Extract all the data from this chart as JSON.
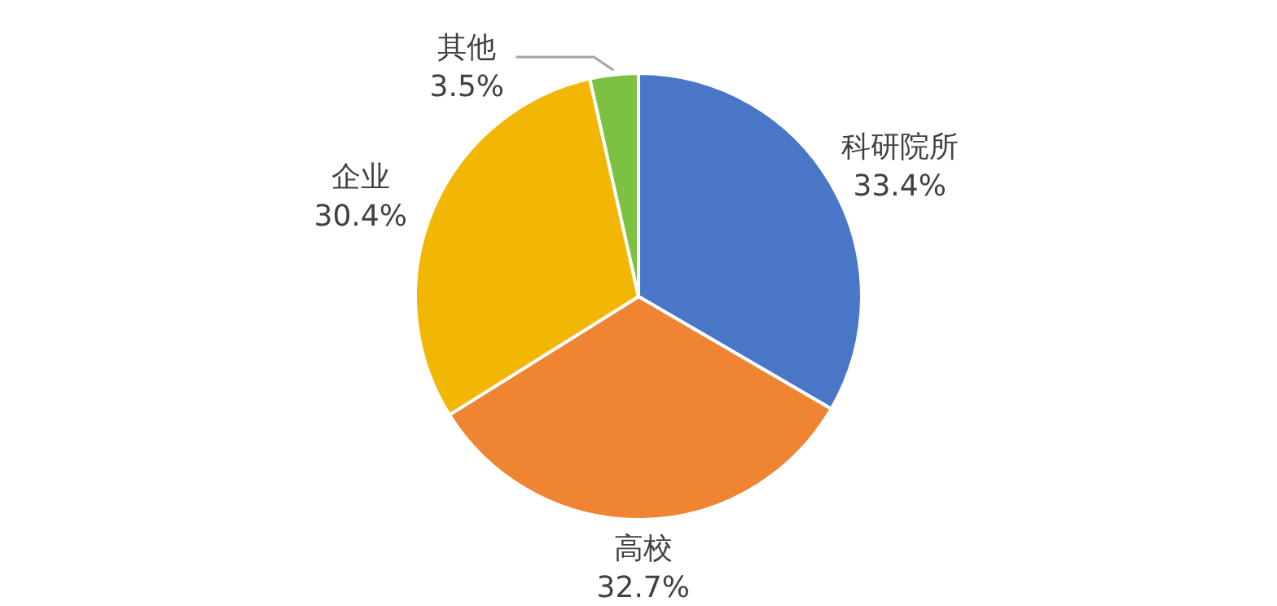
{
  "chart_data": {
    "type": "pie",
    "categories": [
      "科研院所",
      "高校",
      "企业",
      "其他"
    ],
    "values": [
      33.4,
      32.7,
      30.4,
      3.5
    ],
    "colors": [
      "#4a76c8",
      "#ef8433",
      "#f2b705",
      "#7cc142"
    ],
    "value_labels": [
      "33.4%",
      "32.7%",
      "30.4%",
      "3.5%"
    ]
  }
}
